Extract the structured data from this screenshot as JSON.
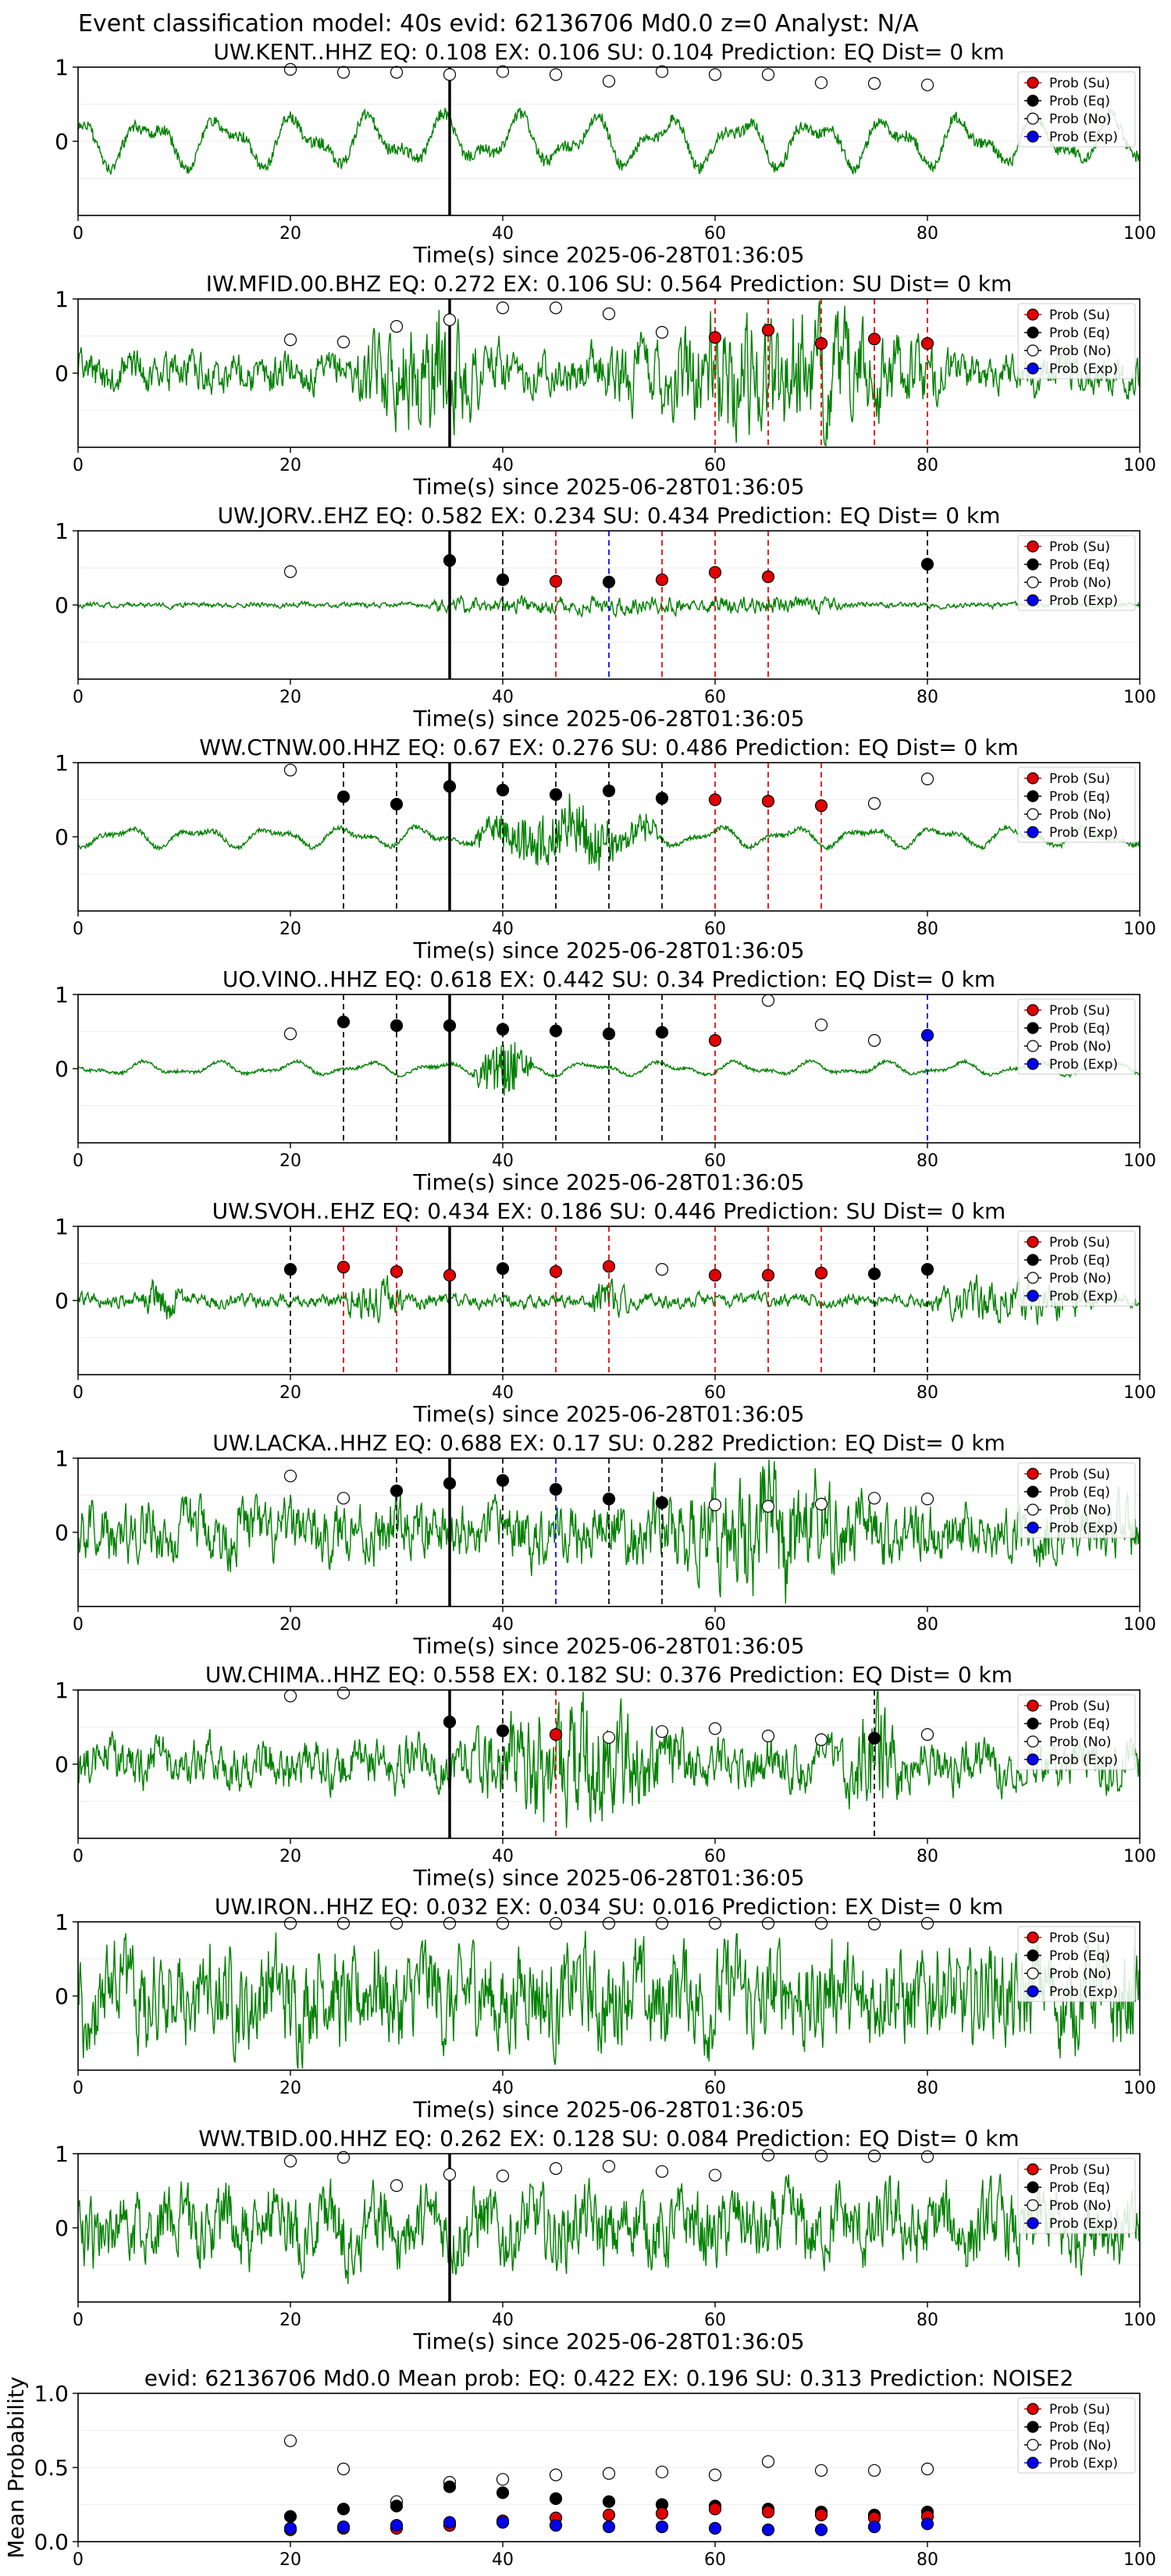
{
  "page_title": "Event classification model: 40s evid: 62136706 Md0.0 z=0 Analyst: N/A",
  "legend": {
    "su": "Prob (Su)",
    "eq": "Prob (Eq)",
    "no": "Prob (No)",
    "exp": "Prob (Exp)"
  },
  "colors": {
    "su": "#e00000",
    "eq": "#000000",
    "no": "#ffffff",
    "exp": "#0000ee",
    "waveform": "#008000",
    "arrival_line": "#000000"
  },
  "xlabel": "Time(s) since 2025-06-28T01:36:05",
  "chart_data": [
    {
      "type": "scatter",
      "title": "UW.KENT..HHZ   EQ: 0.108  EX: 0.106  SU: 0.104   Prediction: EQ    Dist= 0 km",
      "xlim": [
        0,
        100
      ],
      "ylim": [
        -1,
        1
      ],
      "yticks": [
        "1",
        "0"
      ],
      "xticks": [
        "0",
        "20",
        "40",
        "60",
        "80",
        "100"
      ],
      "amp": 0.45,
      "seed": 3,
      "style": "lowfreq",
      "bursts": [],
      "arrival": 35,
      "series": [
        {
          "name": "Prob (No)",
          "x": [
            20,
            25,
            30,
            35,
            40,
            45,
            50,
            55,
            60,
            65,
            70,
            75,
            80
          ],
          "y": [
            0.97,
            0.93,
            0.93,
            0.9,
            0.94,
            0.9,
            0.81,
            0.94,
            0.9,
            0.9,
            0.79,
            0.78,
            0.76
          ]
        }
      ],
      "vlines": []
    },
    {
      "type": "scatter",
      "title": "IW.MFID.00.BHZ   EQ: 0.272  EX: 0.106  SU: 0.564   Prediction: SU    Dist= 0 km",
      "xlim": [
        0,
        100
      ],
      "ylim": [
        -1,
        1
      ],
      "yticks": [
        "1",
        "0"
      ],
      "xticks": [
        "0",
        "20",
        "40",
        "60",
        "80",
        "100"
      ],
      "amp": 0.3,
      "seed": 7,
      "style": "noise",
      "bursts": [
        [
          33,
          8,
          0.8
        ],
        [
          65,
          18,
          0.9
        ]
      ],
      "arrival": 35,
      "series": [
        {
          "name": "Prob (No)",
          "x": [
            20,
            25,
            30,
            35,
            40,
            45,
            50,
            55
          ],
          "y": [
            0.45,
            0.42,
            0.63,
            0.72,
            0.88,
            0.88,
            0.8,
            0.55
          ]
        },
        {
          "name": "Prob (Su)",
          "x": [
            60,
            65,
            70,
            75,
            80
          ],
          "y": [
            0.48,
            0.58,
            0.4,
            0.46,
            0.4
          ]
        }
      ],
      "vlines": [
        [
          60,
          "su"
        ],
        [
          65,
          "su"
        ],
        [
          70,
          "su"
        ],
        [
          75,
          "su"
        ],
        [
          80,
          "su"
        ]
      ]
    },
    {
      "type": "scatter",
      "title": "UW.JORV..EHZ   EQ: 0.582  EX: 0.234  SU: 0.434   Prediction: EQ    Dist= 0 km",
      "xlim": [
        0,
        100
      ],
      "ylim": [
        -1,
        1
      ],
      "yticks": [
        "1",
        "0"
      ],
      "xticks": [
        "0",
        "20",
        "40",
        "60",
        "80",
        "100"
      ],
      "amp": 0.04,
      "seed": 11,
      "style": "noise",
      "bursts": [
        [
          40,
          7,
          0.7
        ],
        [
          48,
          10,
          0.9
        ],
        [
          65,
          8,
          0.25
        ]
      ],
      "arrival": 35,
      "series": [
        {
          "name": "Prob (No)",
          "x": [
            20
          ],
          "y": [
            0.45
          ]
        },
        {
          "name": "Prob (Eq)",
          "x": [
            35,
            40,
            50,
            80
          ],
          "y": [
            0.6,
            0.34,
            0.31,
            0.55
          ]
        },
        {
          "name": "Prob (Su)",
          "x": [
            45,
            55,
            60,
            65
          ],
          "y": [
            0.32,
            0.34,
            0.44,
            0.38
          ]
        }
      ],
      "vlines": [
        [
          40,
          "eq"
        ],
        [
          45,
          "su"
        ],
        [
          50,
          "exp"
        ],
        [
          55,
          "su"
        ],
        [
          60,
          "su"
        ],
        [
          65,
          "su"
        ],
        [
          80,
          "eq"
        ]
      ]
    },
    {
      "type": "scatter",
      "title": "WW.CTNW.00.HHZ   EQ: 0.67  EX: 0.276  SU: 0.486   Prediction: EQ    Dist= 0 km",
      "xlim": [
        0,
        100
      ],
      "ylim": [
        -1,
        1
      ],
      "yticks": [
        "1",
        "0"
      ],
      "xticks": [
        "0",
        "20",
        "40",
        "60",
        "80",
        "100"
      ],
      "amp": 0.18,
      "seed": 17,
      "style": "lowfreq",
      "bursts": [
        [
          46,
          10,
          0.7
        ]
      ],
      "arrival": 35,
      "series": [
        {
          "name": "Prob (No)",
          "x": [
            20,
            75,
            80
          ],
          "y": [
            0.9,
            0.45,
            0.78
          ]
        },
        {
          "name": "Prob (Eq)",
          "x": [
            25,
            30,
            35,
            40,
            45,
            50,
            55
          ],
          "y": [
            0.54,
            0.44,
            0.68,
            0.63,
            0.57,
            0.62,
            0.52
          ]
        },
        {
          "name": "Prob (Su)",
          "x": [
            60,
            65,
            70
          ],
          "y": [
            0.5,
            0.48,
            0.42
          ]
        }
      ],
      "vlines": [
        [
          25,
          "eq"
        ],
        [
          30,
          "eq"
        ],
        [
          40,
          "eq"
        ],
        [
          45,
          "eq"
        ],
        [
          50,
          "eq"
        ],
        [
          55,
          "eq"
        ],
        [
          60,
          "su"
        ],
        [
          65,
          "su"
        ],
        [
          70,
          "su"
        ]
      ]
    },
    {
      "type": "scatter",
      "title": "UO.VINO..HHZ   EQ: 0.618  EX: 0.442  SU: 0.34   Prediction: EQ    Dist= 0 km",
      "xlim": [
        0,
        100
      ],
      "ylim": [
        -1,
        1
      ],
      "yticks": [
        "1",
        "0"
      ],
      "xticks": [
        "0",
        "20",
        "40",
        "60",
        "80",
        "100"
      ],
      "amp": 0.12,
      "seed": 23,
      "style": "lowfreq",
      "bursts": [
        [
          40,
          3,
          1.0
        ]
      ],
      "arrival": 35,
      "series": [
        {
          "name": "Prob (No)",
          "x": [
            20,
            65,
            70,
            75
          ],
          "y": [
            0.47,
            0.92,
            0.59,
            0.38
          ]
        },
        {
          "name": "Prob (Eq)",
          "x": [
            25,
            30,
            35,
            40,
            45,
            50,
            55
          ],
          "y": [
            0.63,
            0.58,
            0.58,
            0.53,
            0.51,
            0.47,
            0.49
          ]
        },
        {
          "name": "Prob (Su)",
          "x": [
            60
          ],
          "y": [
            0.38
          ]
        },
        {
          "name": "Prob (Exp)",
          "x": [
            80
          ],
          "y": [
            0.45
          ]
        }
      ],
      "vlines": [
        [
          25,
          "eq"
        ],
        [
          30,
          "eq"
        ],
        [
          40,
          "eq"
        ],
        [
          45,
          "eq"
        ],
        [
          50,
          "eq"
        ],
        [
          55,
          "eq"
        ],
        [
          60,
          "su"
        ],
        [
          80,
          "exp"
        ]
      ]
    },
    {
      "type": "scatter",
      "title": "UW.SVOH..EHZ   EQ: 0.434  EX: 0.186  SU: 0.446   Prediction: SU    Dist= 0 km",
      "xlim": [
        0,
        100
      ],
      "ylim": [
        -1,
        1
      ],
      "yticks": [
        "1",
        "0"
      ],
      "xticks": [
        "0",
        "20",
        "40",
        "60",
        "80",
        "100"
      ],
      "amp": 0.1,
      "seed": 29,
      "style": "noise",
      "bursts": [
        [
          8,
          2,
          0.5
        ],
        [
          28,
          3,
          0.9
        ],
        [
          50,
          2,
          0.4
        ],
        [
          88,
          8,
          0.6
        ]
      ],
      "arrival": 35,
      "series": [
        {
          "name": "Prob (Eq)",
          "x": [
            20,
            40,
            75,
            80
          ],
          "y": [
            0.42,
            0.43,
            0.36,
            0.42
          ]
        },
        {
          "name": "Prob (Su)",
          "x": [
            25,
            30,
            35,
            45,
            50,
            60,
            65,
            70
          ],
          "y": [
            0.45,
            0.39,
            0.34,
            0.39,
            0.46,
            0.34,
            0.34,
            0.37
          ]
        },
        {
          "name": "Prob (No)",
          "x": [
            55
          ],
          "y": [
            0.42
          ]
        }
      ],
      "vlines": [
        [
          20,
          "eq"
        ],
        [
          25,
          "su"
        ],
        [
          30,
          "su"
        ],
        [
          40,
          "eq"
        ],
        [
          45,
          "su"
        ],
        [
          50,
          "su"
        ],
        [
          60,
          "su"
        ],
        [
          65,
          "su"
        ],
        [
          70,
          "su"
        ],
        [
          75,
          "eq"
        ],
        [
          80,
          "eq"
        ]
      ]
    },
    {
      "type": "scatter",
      "title": "UW.LACKA..HHZ   EQ: 0.688  EX: 0.17  SU: 0.282   Prediction: EQ    Dist= 0 km",
      "xlim": [
        0,
        100
      ],
      "ylim": [
        -1,
        1
      ],
      "yticks": [
        "1",
        "0"
      ],
      "xticks": [
        "0",
        "20",
        "40",
        "60",
        "80",
        "100"
      ],
      "amp": 0.45,
      "seed": 31,
      "style": "noise",
      "bursts": [
        [
          65,
          10,
          0.7
        ]
      ],
      "arrival": 35,
      "series": [
        {
          "name": "Prob (No)",
          "x": [
            20,
            25,
            60,
            65,
            70,
            75,
            80
          ],
          "y": [
            0.76,
            0.46,
            0.37,
            0.35,
            0.38,
            0.46,
            0.45
          ]
        },
        {
          "name": "Prob (Eq)",
          "x": [
            30,
            35,
            40,
            45,
            50,
            55
          ],
          "y": [
            0.56,
            0.66,
            0.7,
            0.58,
            0.45,
            0.4
          ]
        }
      ],
      "vlines": [
        [
          30,
          "eq"
        ],
        [
          40,
          "eq"
        ],
        [
          45,
          "exp"
        ],
        [
          50,
          "eq"
        ],
        [
          55,
          "eq"
        ]
      ]
    },
    {
      "type": "scatter",
      "title": "UW.CHIMA..HHZ   EQ: 0.558  EX: 0.182  SU: 0.376   Prediction: EQ    Dist= 0 km",
      "xlim": [
        0,
        100
      ],
      "ylim": [
        -1,
        1
      ],
      "yticks": [
        "1",
        "0"
      ],
      "xticks": [
        "0",
        "20",
        "40",
        "60",
        "80",
        "100"
      ],
      "amp": 0.35,
      "seed": 37,
      "style": "noise",
      "bursts": [
        [
          47,
          12,
          0.8
        ],
        [
          75,
          3,
          0.7
        ]
      ],
      "arrival": 35,
      "series": [
        {
          "name": "Prob (No)",
          "x": [
            20,
            25,
            50,
            55,
            60,
            65,
            70,
            80
          ],
          "y": [
            0.92,
            0.96,
            0.36,
            0.44,
            0.48,
            0.38,
            0.33,
            0.4
          ]
        },
        {
          "name": "Prob (Eq)",
          "x": [
            35,
            40,
            75
          ],
          "y": [
            0.57,
            0.45,
            0.35
          ]
        },
        {
          "name": "Prob (Su)",
          "x": [
            45
          ],
          "y": [
            0.4
          ]
        }
      ],
      "vlines": [
        [
          40,
          "eq"
        ],
        [
          45,
          "su"
        ],
        [
          75,
          "eq"
        ]
      ]
    },
    {
      "type": "scatter",
      "title": "UW.IRON..HHZ   EQ: 0.032  EX: 0.034  SU: 0.016   Prediction: EX    Dist= 0 km",
      "xlim": [
        0,
        100
      ],
      "ylim": [
        -1,
        1
      ],
      "yticks": [
        "1",
        "0"
      ],
      "xticks": [
        "0",
        "20",
        "40",
        "60",
        "80",
        "100"
      ],
      "amp": 0.75,
      "seed": 41,
      "style": "noise",
      "bursts": [],
      "arrival": null,
      "series": [
        {
          "name": "Prob (No)",
          "x": [
            20,
            25,
            30,
            35,
            40,
            45,
            50,
            55,
            60,
            65,
            70,
            75,
            80
          ],
          "y": [
            0.98,
            0.98,
            0.98,
            0.98,
            0.98,
            0.98,
            0.98,
            0.98,
            0.98,
            0.98,
            0.98,
            0.97,
            0.98
          ]
        }
      ],
      "vlines": []
    },
    {
      "type": "scatter",
      "title": "WW.TBID.00.HHZ   EQ: 0.262  EX: 0.128  SU: 0.084   Prediction: EQ    Dist= 0 km",
      "xlim": [
        0,
        100
      ],
      "ylim": [
        -1,
        1
      ],
      "yticks": [
        "1",
        "0"
      ],
      "xticks": [
        "0",
        "20",
        "40",
        "60",
        "80",
        "100"
      ],
      "amp": 0.55,
      "seed": 43,
      "style": "noise",
      "bursts": [],
      "arrival": 35,
      "series": [
        {
          "name": "Prob (No)",
          "x": [
            20,
            25,
            30,
            35,
            40,
            45,
            50,
            55,
            60,
            65,
            70,
            75,
            80
          ],
          "y": [
            0.9,
            0.95,
            0.57,
            0.72,
            0.7,
            0.8,
            0.83,
            0.76,
            0.71,
            0.98,
            0.97,
            0.97,
            0.96
          ]
        }
      ],
      "vlines": []
    },
    {
      "type": "scatter",
      "title": "evid: 62136706  Md0.0   Mean prob:   EQ: 0.422  EX: 0.196  SU: 0.313   Prediction: NOISE2",
      "xlim": [
        0,
        100
      ],
      "ylim": [
        0,
        1
      ],
      "yticks": [
        "1.0",
        "0.5",
        "0.0"
      ],
      "xticks": [
        "0",
        "20",
        "40",
        "60",
        "80",
        "100"
      ],
      "ylabel": "Mean Probability",
      "grid": true,
      "series": [
        {
          "name": "Prob (No)",
          "x": [
            20,
            25,
            30,
            35,
            40,
            45,
            50,
            55,
            60,
            65,
            70,
            75,
            80
          ],
          "y": [
            0.68,
            0.49,
            0.27,
            0.4,
            0.42,
            0.45,
            0.46,
            0.47,
            0.45,
            0.54,
            0.48,
            0.48,
            0.49
          ]
        },
        {
          "name": "Prob (Eq)",
          "x": [
            20,
            25,
            30,
            35,
            40,
            45,
            50,
            55,
            60,
            65,
            70,
            75,
            80
          ],
          "y": [
            0.17,
            0.22,
            0.24,
            0.37,
            0.33,
            0.29,
            0.27,
            0.25,
            0.24,
            0.22,
            0.2,
            0.18,
            0.2
          ]
        },
        {
          "name": "Prob (Su)",
          "x": [
            20,
            25,
            30,
            35,
            40,
            45,
            50,
            55,
            60,
            65,
            70,
            75,
            80
          ],
          "y": [
            0.08,
            0.09,
            0.09,
            0.11,
            0.14,
            0.16,
            0.18,
            0.19,
            0.22,
            0.2,
            0.18,
            0.16,
            0.17
          ]
        },
        {
          "name": "Prob (Exp)",
          "x": [
            20,
            25,
            30,
            35,
            40,
            45,
            50,
            55,
            60,
            65,
            70,
            75,
            80
          ],
          "y": [
            0.09,
            0.1,
            0.11,
            0.13,
            0.13,
            0.11,
            0.1,
            0.1,
            0.09,
            0.08,
            0.08,
            0.1,
            0.12
          ]
        }
      ]
    }
  ]
}
